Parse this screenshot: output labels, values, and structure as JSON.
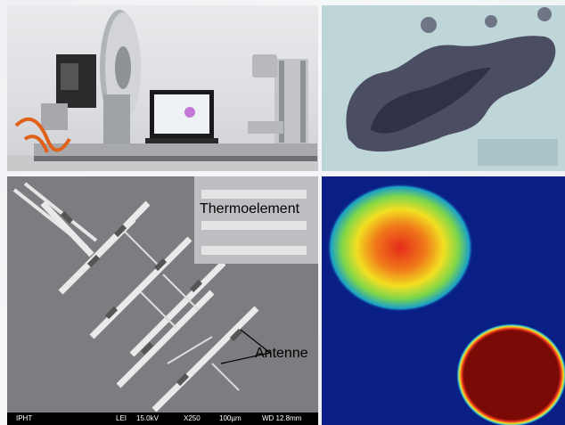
{
  "figure": {
    "panels": [
      {
        "id": "apparatus-photo"
      },
      {
        "id": "grayscale-image"
      },
      {
        "id": "sem-micrograph",
        "labels": {
          "inset": "Thermoelement",
          "antenna": "Antenne"
        },
        "scale_bar": {
          "left": "IPHT",
          "detector": "LEI",
          "voltage": "15.0kV",
          "magnification": "X250",
          "scale": "100µm",
          "wd": "WD 12.8mm"
        }
      },
      {
        "id": "false-color-map"
      }
    ]
  }
}
